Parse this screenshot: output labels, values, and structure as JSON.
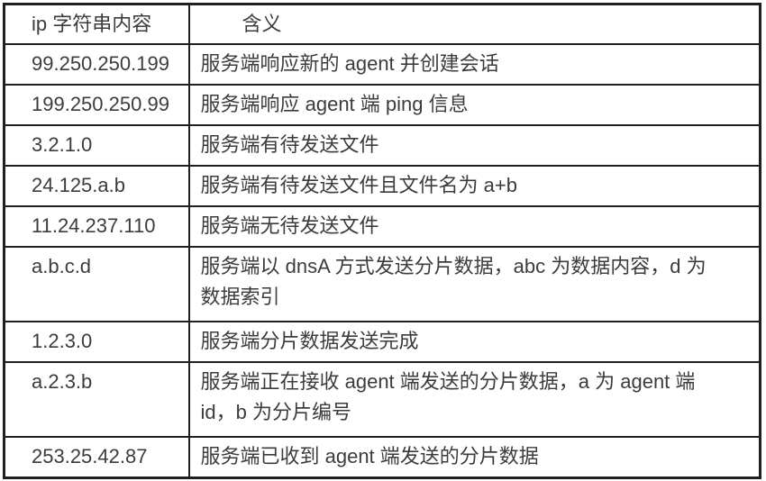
{
  "table": {
    "columns": [
      {
        "label": "ip 字符串内容"
      },
      {
        "label": "含义"
      }
    ],
    "rows": [
      {
        "ip": "99.250.250.199",
        "meaning": "服务端响应新的 agent 并创建会话"
      },
      {
        "ip": "199.250.250.99",
        "meaning": "服务端响应 agent 端 ping 信息"
      },
      {
        "ip": "3.2.1.0",
        "meaning": "服务端有待发送文件"
      },
      {
        "ip": "24.125.a.b",
        "meaning": "服务端有待发送文件且文件名为 a+b"
      },
      {
        "ip": "11.24.237.110",
        "meaning": "服务端无待发送文件"
      },
      {
        "ip": "a.b.c.d",
        "meaning": "服务端以 dnsA 方式发送分片数据，abc 为数据内容，d 为\n数据索引"
      },
      {
        "ip": "1.2.3.0",
        "meaning": "服务端分片数据发送完成"
      },
      {
        "ip": "a.2.3.b",
        "meaning": "服务端正在接收 agent 端发送的分片数据，a 为 agent 端\nid，b 为分片编号"
      },
      {
        "ip": "253.25.42.87",
        "meaning": "服务端已收到 agent 端发送的分片数据"
      }
    ],
    "colors": {
      "border": "#1f1f1f",
      "text": "#3c3c3c",
      "background": "#ffffff"
    }
  }
}
